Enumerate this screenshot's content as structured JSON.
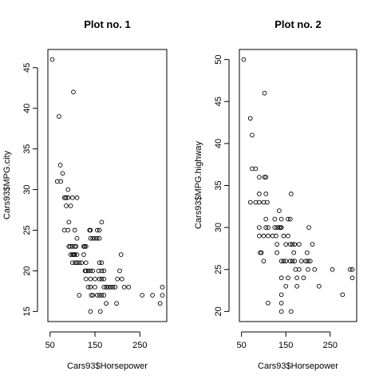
{
  "chart_data": [
    {
      "type": "scatter",
      "title": "Plot no. 1",
      "xlabel": "Cars93$Horsepower",
      "ylabel": "Cars93$MPG.city",
      "xlim": [
        55,
        300
      ],
      "ylim": [
        15,
        46
      ],
      "xticks": [
        50,
        150,
        250
      ],
      "yticks": [
        15,
        20,
        25,
        30,
        35,
        40,
        45
      ],
      "grid": false,
      "points": [
        [
          55,
          46
        ],
        [
          70,
          39
        ],
        [
          73,
          33
        ],
        [
          74,
          31
        ],
        [
          82,
          29
        ],
        [
          85,
          29
        ],
        [
          85,
          29
        ],
        [
          66,
          31
        ],
        [
          102,
          42
        ],
        [
          78,
          32
        ],
        [
          90,
          30
        ],
        [
          82,
          25
        ],
        [
          92,
          26
        ],
        [
          86,
          28
        ],
        [
          90,
          29
        ],
        [
          100,
          29
        ],
        [
          110,
          29
        ],
        [
          96,
          28
        ],
        [
          90,
          25
        ],
        [
          105,
          25
        ],
        [
          110,
          24
        ],
        [
          92,
          23
        ],
        [
          95,
          23
        ],
        [
          100,
          23
        ],
        [
          96,
          22
        ],
        [
          100,
          22
        ],
        [
          102,
          22
        ],
        [
          104,
          22
        ],
        [
          105,
          22
        ],
        [
          110,
          22
        ],
        [
          100,
          21
        ],
        [
          106,
          21
        ],
        [
          110,
          21
        ],
        [
          115,
          21
        ],
        [
          120,
          21
        ],
        [
          105,
          23
        ],
        [
          108,
          23
        ],
        [
          125,
          23
        ],
        [
          127,
          23
        ],
        [
          130,
          23
        ],
        [
          125,
          22
        ],
        [
          130,
          21
        ],
        [
          128,
          20
        ],
        [
          130,
          20
        ],
        [
          135,
          20
        ],
        [
          140,
          20
        ],
        [
          145,
          20
        ],
        [
          138,
          25
        ],
        [
          140,
          25
        ],
        [
          140,
          24
        ],
        [
          145,
          24
        ],
        [
          150,
          24
        ],
        [
          155,
          24
        ],
        [
          155,
          25
        ],
        [
          160,
          25
        ],
        [
          160,
          24
        ],
        [
          115,
          17
        ],
        [
          130,
          19
        ],
        [
          140,
          19
        ],
        [
          135,
          18
        ],
        [
          140,
          18
        ],
        [
          150,
          18
        ],
        [
          142,
          17
        ],
        [
          145,
          17
        ],
        [
          155,
          17
        ],
        [
          160,
          17
        ],
        [
          150,
          19
        ],
        [
          158,
          20
        ],
        [
          160,
          19
        ],
        [
          160,
          21
        ],
        [
          165,
          21
        ],
        [
          165,
          20
        ],
        [
          170,
          20
        ],
        [
          165,
          19
        ],
        [
          170,
          19
        ],
        [
          170,
          18
        ],
        [
          175,
          18
        ],
        [
          180,
          18
        ],
        [
          185,
          18
        ],
        [
          190,
          18
        ],
        [
          195,
          18
        ],
        [
          165,
          17
        ],
        [
          170,
          17
        ],
        [
          162,
          15
        ],
        [
          140,
          15
        ],
        [
          175,
          16
        ],
        [
          198,
          16
        ],
        [
          200,
          19
        ],
        [
          205,
          20
        ],
        [
          208,
          22
        ],
        [
          210,
          19
        ],
        [
          215,
          18
        ],
        [
          225,
          18
        ],
        [
          255,
          17
        ],
        [
          278,
          17
        ],
        [
          295,
          16
        ],
        [
          300,
          17
        ],
        [
          300,
          18
        ],
        [
          165,
          26
        ]
      ]
    },
    {
      "type": "scatter",
      "title": "Plot no. 2",
      "xlabel": "Cars93$Horsepower",
      "ylabel": "Cars93$MPG.highway",
      "xlim": [
        55,
        300
      ],
      "ylim": [
        20,
        50
      ],
      "xticks": [
        50,
        150,
        250
      ],
      "yticks": [
        20,
        25,
        30,
        35,
        40,
        45,
        50
      ],
      "grid": false,
      "points": [
        [
          55,
          50
        ],
        [
          70,
          43
        ],
        [
          74,
          41
        ],
        [
          70,
          33
        ],
        [
          74,
          37
        ],
        [
          82,
          37
        ],
        [
          82,
          33
        ],
        [
          90,
          36
        ],
        [
          102,
          46
        ],
        [
          90,
          34
        ],
        [
          90,
          33
        ],
        [
          90,
          30
        ],
        [
          90,
          29
        ],
        [
          92,
          27
        ],
        [
          95,
          27
        ],
        [
          100,
          29
        ],
        [
          100,
          26
        ],
        [
          100,
          33
        ],
        [
          102,
          36
        ],
        [
          105,
          36
        ],
        [
          105,
          34
        ],
        [
          105,
          31
        ],
        [
          105,
          30
        ],
        [
          110,
          29
        ],
        [
          110,
          30
        ],
        [
          108,
          33
        ],
        [
          120,
          29
        ],
        [
          125,
          30
        ],
        [
          125,
          31
        ],
        [
          128,
          29
        ],
        [
          130,
          30
        ],
        [
          130,
          27
        ],
        [
          130,
          28
        ],
        [
          135,
          30
        ],
        [
          135,
          32
        ],
        [
          138,
          30
        ],
        [
          140,
          31
        ],
        [
          140,
          30
        ],
        [
          140,
          26
        ],
        [
          140,
          24
        ],
        [
          145,
          29
        ],
        [
          145,
          26
        ],
        [
          150,
          28
        ],
        [
          150,
          26
        ],
        [
          155,
          29
        ],
        [
          155,
          24
        ],
        [
          155,
          31
        ],
        [
          160,
          28
        ],
        [
          160,
          26
        ],
        [
          160,
          31
        ],
        [
          162,
          34
        ],
        [
          165,
          28
        ],
        [
          165,
          26
        ],
        [
          168,
          27
        ],
        [
          170,
          28
        ],
        [
          170,
          26
        ],
        [
          172,
          25
        ],
        [
          175,
          24
        ],
        [
          175,
          23
        ],
        [
          180,
          25
        ],
        [
          180,
          28
        ],
        [
          185,
          26
        ],
        [
          190,
          24
        ],
        [
          195,
          26
        ],
        [
          198,
          27
        ],
        [
          200,
          25
        ],
        [
          200,
          26
        ],
        [
          202,
          30
        ],
        [
          205,
          26
        ],
        [
          210,
          28
        ],
        [
          215,
          25
        ],
        [
          225,
          23
        ],
        [
          140,
          22
        ],
        [
          140,
          21
        ],
        [
          140,
          20
        ],
        [
          150,
          23
        ],
        [
          162,
          20
        ],
        [
          110,
          21
        ],
        [
          255,
          25
        ],
        [
          278,
          22
        ],
        [
          295,
          25
        ],
        [
          300,
          25
        ],
        [
          300,
          24
        ]
      ]
    }
  ]
}
